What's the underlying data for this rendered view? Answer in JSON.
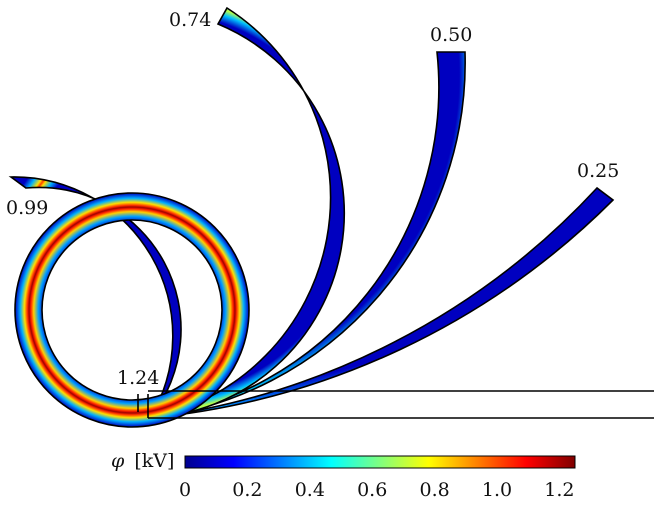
{
  "figure": {
    "labels": {
      "c124": "1.24",
      "c099": "0.99",
      "c074": "0.74",
      "c050": "0.50",
      "c025": "0.25"
    },
    "colorbar": {
      "symbol": "φ",
      "unit": "[kV]",
      "ticks": [
        "0",
        "0.2",
        "0.4",
        "0.6",
        "0.8",
        "1.0",
        "1.2"
      ],
      "range": [
        0,
        1.25
      ],
      "colormap": "jet",
      "colors": [
        "#00008f",
        "#0000ff",
        "#00ffff",
        "#ffff00",
        "#ff0000",
        "#800000"
      ]
    },
    "beams": [
      {
        "name": "curvature-1.24",
        "peak_potential_kV": 1.24
      },
      {
        "name": "curvature-0.99",
        "peak_potential_kV": 0.99
      },
      {
        "name": "curvature-0.74",
        "peak_potential_kV": 0.74
      },
      {
        "name": "curvature-0.50",
        "peak_potential_kV": 0.5
      },
      {
        "name": "curvature-0.25",
        "peak_potential_kV": 0.25
      }
    ]
  }
}
